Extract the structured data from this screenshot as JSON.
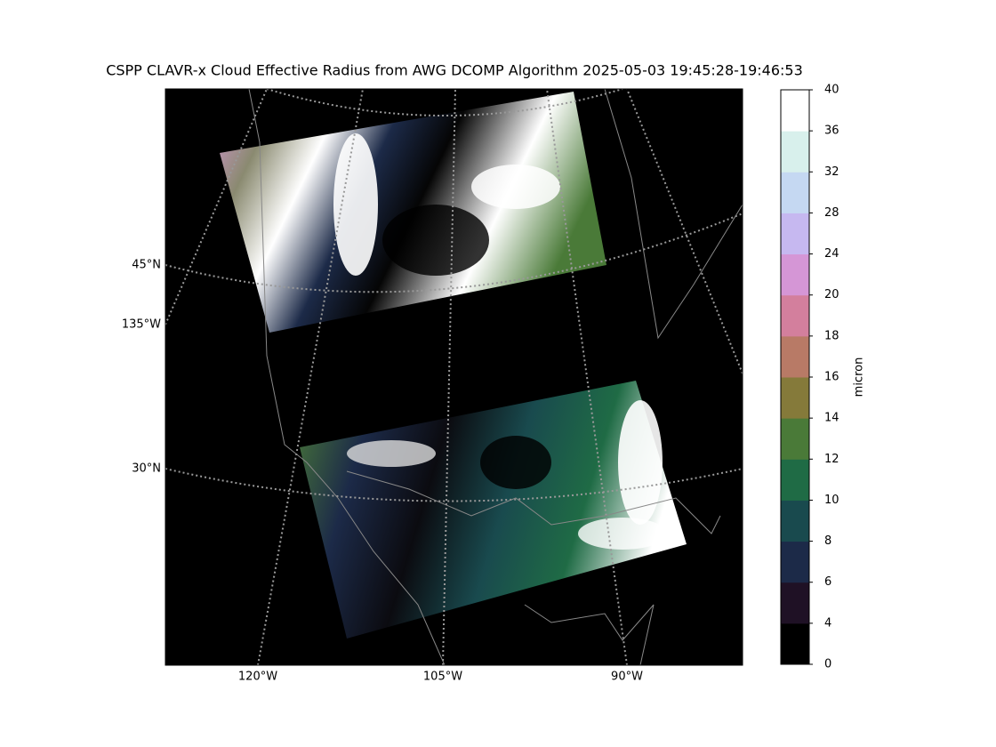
{
  "map": {
    "title": "CSPP CLAVR-x Cloud Effective Radius from AWG DCOMP Algorithm 2025-05-03 19:45:28-19:46:53",
    "lat_labels": [
      "45°N",
      "30°N"
    ],
    "left_lon_labels": [
      "135°W"
    ],
    "bottom_lon_labels": [
      "120°W",
      "105°W",
      "90°W"
    ]
  },
  "colorbar": {
    "label": "micron",
    "ticks": [
      0,
      4,
      6,
      8,
      10,
      12,
      14,
      16,
      18,
      20,
      24,
      28,
      32,
      36,
      40
    ],
    "colors": [
      "#000000",
      "#1f1125",
      "#1c2a48",
      "#194a4e",
      "#1f6b45",
      "#4a7a38",
      "#857a3a",
      "#b87a66",
      "#d37f9d",
      "#d596d6",
      "#c6b8f0",
      "#c5d8f2",
      "#d8f0ec",
      "#ffffff"
    ]
  }
}
